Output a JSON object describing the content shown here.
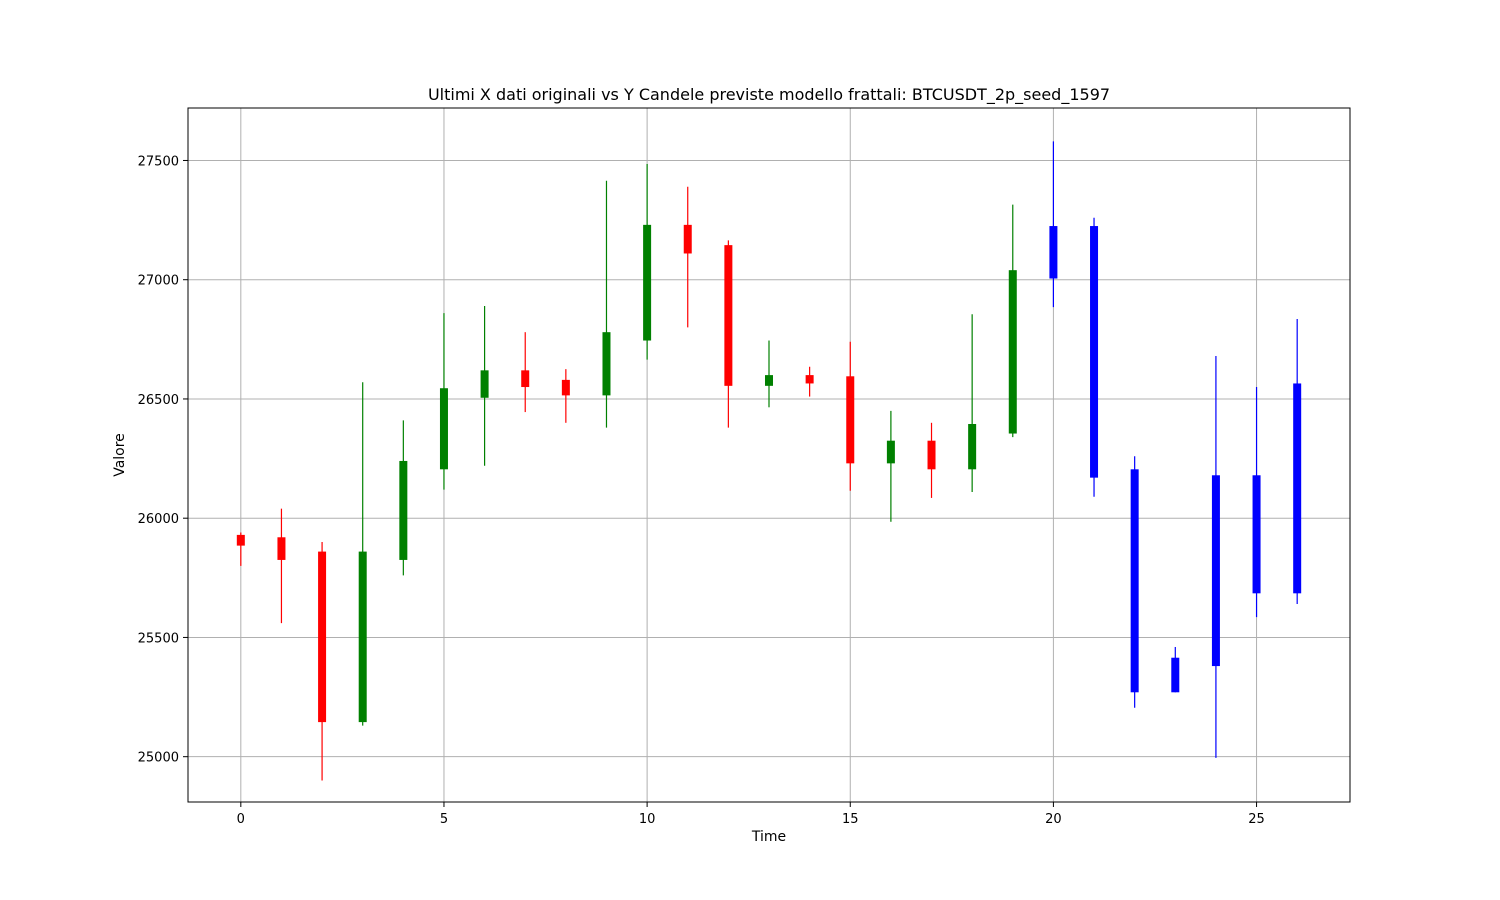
{
  "chart_data": {
    "type": "candlestick",
    "title": "Ultimi X dati originali vs Y Candele previste modello frattali: BTCUSDT_2p_seed_1597",
    "xlabel": "Time",
    "ylabel": "Valore",
    "xlim": [
      -1.3,
      27.3
    ],
    "ylim": [
      24810,
      27720
    ],
    "xticks": [
      0,
      5,
      10,
      15,
      20,
      25
    ],
    "yticks": [
      25000,
      25500,
      26000,
      26500,
      27000,
      27500
    ],
    "grid": true,
    "legend": "none",
    "colors": {
      "up": "#008000",
      "down": "#ff0000",
      "predicted": "#0000ff"
    },
    "candles": [
      {
        "x": 0,
        "open": 25930,
        "high": 25940,
        "low": 25800,
        "close": 25885,
        "series": "original"
      },
      {
        "x": 1,
        "open": 25920,
        "high": 26040,
        "low": 25560,
        "close": 25825,
        "series": "original"
      },
      {
        "x": 2,
        "open": 25860,
        "high": 25900,
        "low": 24900,
        "close": 25145,
        "series": "original"
      },
      {
        "x": 3,
        "open": 25145,
        "high": 26570,
        "low": 25130,
        "close": 25860,
        "series": "original"
      },
      {
        "x": 4,
        "open": 25825,
        "high": 26410,
        "low": 25760,
        "close": 26240,
        "series": "original"
      },
      {
        "x": 5,
        "open": 26205,
        "high": 26860,
        "low": 26120,
        "close": 26545,
        "series": "original"
      },
      {
        "x": 6,
        "open": 26505,
        "high": 26890,
        "low": 26220,
        "close": 26620,
        "series": "original"
      },
      {
        "x": 7,
        "open": 26620,
        "high": 26780,
        "low": 26445,
        "close": 26550,
        "series": "original"
      },
      {
        "x": 8,
        "open": 26580,
        "high": 26625,
        "low": 26400,
        "close": 26515,
        "series": "original"
      },
      {
        "x": 9,
        "open": 26515,
        "high": 27415,
        "low": 26380,
        "close": 26780,
        "series": "original"
      },
      {
        "x": 10,
        "open": 26745,
        "high": 27485,
        "low": 26665,
        "close": 27230,
        "series": "original"
      },
      {
        "x": 11,
        "open": 27230,
        "high": 27390,
        "low": 26800,
        "close": 27110,
        "series": "original"
      },
      {
        "x": 12,
        "open": 27145,
        "high": 27165,
        "low": 26380,
        "close": 26555,
        "series": "original"
      },
      {
        "x": 13,
        "open": 26555,
        "high": 26745,
        "low": 26465,
        "close": 26600,
        "series": "original"
      },
      {
        "x": 14,
        "open": 26600,
        "high": 26635,
        "low": 26510,
        "close": 26565,
        "series": "original"
      },
      {
        "x": 15,
        "open": 26595,
        "high": 26740,
        "low": 26115,
        "close": 26230,
        "series": "original"
      },
      {
        "x": 16,
        "open": 26230,
        "high": 26450,
        "low": 25985,
        "close": 26325,
        "series": "original"
      },
      {
        "x": 17,
        "open": 26325,
        "high": 26400,
        "low": 26085,
        "close": 26205,
        "series": "original"
      },
      {
        "x": 18,
        "open": 26205,
        "high": 26855,
        "low": 26110,
        "close": 26395,
        "series": "original"
      },
      {
        "x": 19,
        "open": 26355,
        "high": 27315,
        "low": 26340,
        "close": 27040,
        "series": "original"
      },
      {
        "x": 20,
        "open": 27005,
        "high": 27580,
        "low": 26885,
        "close": 27225,
        "series": "predicted"
      },
      {
        "x": 21,
        "open": 27225,
        "high": 27260,
        "low": 26090,
        "close": 26170,
        "series": "predicted"
      },
      {
        "x": 22,
        "open": 26205,
        "high": 26260,
        "low": 25205,
        "close": 25270,
        "series": "predicted"
      },
      {
        "x": 23,
        "open": 25270,
        "high": 25460,
        "low": 25270,
        "close": 25415,
        "series": "predicted"
      },
      {
        "x": 24,
        "open": 25380,
        "high": 26680,
        "low": 24995,
        "close": 26180,
        "series": "predicted"
      },
      {
        "x": 25,
        "open": 25685,
        "high": 26550,
        "low": 25585,
        "close": 26180,
        "series": "predicted"
      },
      {
        "x": 26,
        "open": 25685,
        "high": 26835,
        "low": 25640,
        "close": 26565,
        "series": "predicted"
      }
    ]
  }
}
